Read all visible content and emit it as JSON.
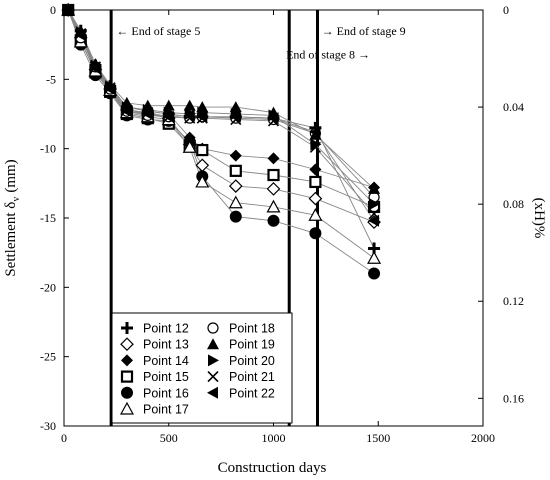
{
  "chart_data": {
    "type": "scatter",
    "xlabel": "Construction days",
    "ylabel": "Settlement δ",
    "ylabel_sub": "v",
    "ylabel_unit": "(mm)",
    "y2label": "(xH)%",
    "xlim": [
      0,
      2000
    ],
    "ylim": [
      -30,
      0
    ],
    "y2lim": [
      0,
      0.1714
    ],
    "x_ticks": [
      0,
      500,
      1000,
      1500,
      2000
    ],
    "y_ticks": [
      0,
      -5,
      -10,
      -15,
      -20,
      -25,
      -30
    ],
    "y2_ticks": [
      0,
      0.04,
      0.08,
      0.12,
      0.16
    ],
    "grid": false,
    "legend_position": "bottom-left",
    "annotations": [
      {
        "text": "← End of stage 5",
        "x": 250,
        "y": -1.8
      },
      {
        "text": "End of stage 8 →",
        "x": 1060,
        "y": -3.5
      },
      {
        "text": "→ End of stage 9",
        "x": 1230,
        "y": -1.8
      }
    ],
    "stage_lines": [
      {
        "label": "End of stage 5",
        "x": 225
      },
      {
        "label": "End of stage 8",
        "x": 1075
      },
      {
        "label": "End of stage 9",
        "x": 1210
      }
    ],
    "x": [
      20,
      80,
      150,
      220,
      300,
      400,
      500,
      600,
      660,
      820,
      1000,
      1200,
      1480
    ],
    "series": [
      {
        "name": "Point 12",
        "marker": "plus",
        "values": [
          0,
          -1.5,
          -4.0,
          -5.5,
          -7.0,
          -7.3,
          -7.5,
          -7.7,
          -7.7,
          -7.7,
          -7.8,
          -8.5,
          -17.2
        ]
      },
      {
        "name": "Point 13",
        "marker": "diamond-open",
        "values": [
          0,
          -2.0,
          -4.3,
          -5.7,
          -7.2,
          -7.5,
          -7.8,
          -9.7,
          -11.2,
          -12.7,
          -12.9,
          -13.6,
          -15.3
        ]
      },
      {
        "name": "Point 14",
        "marker": "diamond-filled",
        "values": [
          0,
          -1.8,
          -4.2,
          -5.6,
          -7.0,
          -7.3,
          -7.5,
          -9.2,
          -10.0,
          -10.5,
          -10.7,
          -11.5,
          -12.8
        ]
      },
      {
        "name": "Point 15",
        "marker": "square-open",
        "values": [
          0,
          -2.2,
          -4.5,
          -5.9,
          -7.5,
          -7.8,
          -8.2,
          -9.8,
          -10.1,
          -11.6,
          -11.9,
          -12.4,
          -14.2
        ]
      },
      {
        "name": "Point 16",
        "marker": "circle-filled",
        "values": [
          0,
          -2.5,
          -4.7,
          -6.0,
          -7.6,
          -7.9,
          -8.0,
          -9.5,
          -12.0,
          -14.9,
          -15.2,
          -16.1,
          -19.0
        ]
      },
      {
        "name": "Point 17",
        "marker": "triangle-open",
        "values": [
          0,
          -2.3,
          -4.4,
          -5.8,
          -7.4,
          -7.7,
          -7.9,
          -9.9,
          -12.4,
          -13.9,
          -14.2,
          -14.8,
          -17.9
        ]
      },
      {
        "name": "Point 18",
        "marker": "circle-open",
        "values": [
          0,
          -2.0,
          -4.1,
          -5.7,
          -7.3,
          -7.6,
          -7.7,
          -7.8,
          -7.7,
          -7.8,
          -7.9,
          -8.9,
          -13.5
        ]
      },
      {
        "name": "Point 19",
        "marker": "triangle-filled",
        "values": [
          0,
          -1.5,
          -3.9,
          -5.4,
          -6.7,
          -6.9,
          -6.9,
          -6.9,
          -7.0,
          -7.0,
          -7.4,
          -9.0,
          -12.9
        ]
      },
      {
        "name": "Point 20",
        "marker": "triangle-right",
        "values": [
          0,
          -1.6,
          -4.0,
          -5.5,
          -7.0,
          -7.2,
          -7.4,
          -7.5,
          -7.4,
          -7.5,
          -7.6,
          -9.7,
          -14.0
        ]
      },
      {
        "name": "Point 21",
        "marker": "x",
        "values": [
          0,
          -1.7,
          -4.1,
          -5.6,
          -7.2,
          -7.4,
          -7.7,
          -7.8,
          -7.8,
          -7.9,
          -8.0,
          -9.9,
          -14.7
        ]
      },
      {
        "name": "Point 22",
        "marker": "triangle-left",
        "values": [
          0,
          -1.8,
          -4.2,
          -5.7,
          -7.3,
          -7.5,
          -7.7,
          -7.6,
          -7.7,
          -7.7,
          -7.8,
          -8.8,
          -15.2
        ]
      }
    ]
  }
}
